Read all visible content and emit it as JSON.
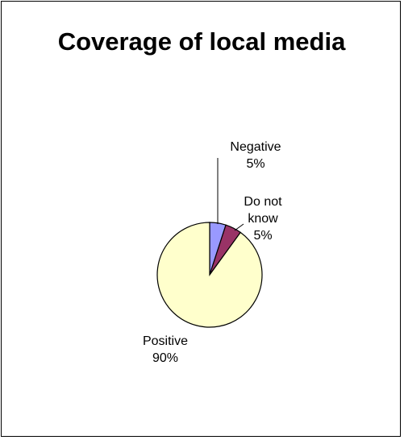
{
  "chart_data": {
    "type": "pie",
    "title": "Coverage of local media",
    "categories": [
      "Negative",
      "Do not know",
      "Positive"
    ],
    "values": [
      5,
      5,
      90
    ],
    "value_labels": [
      "5%",
      "5%",
      "90%"
    ],
    "colors": [
      "#9999ff",
      "#993366",
      "#ffffcc"
    ],
    "start_angle_deg": 0,
    "direction": "clockwise",
    "legend": "none"
  }
}
